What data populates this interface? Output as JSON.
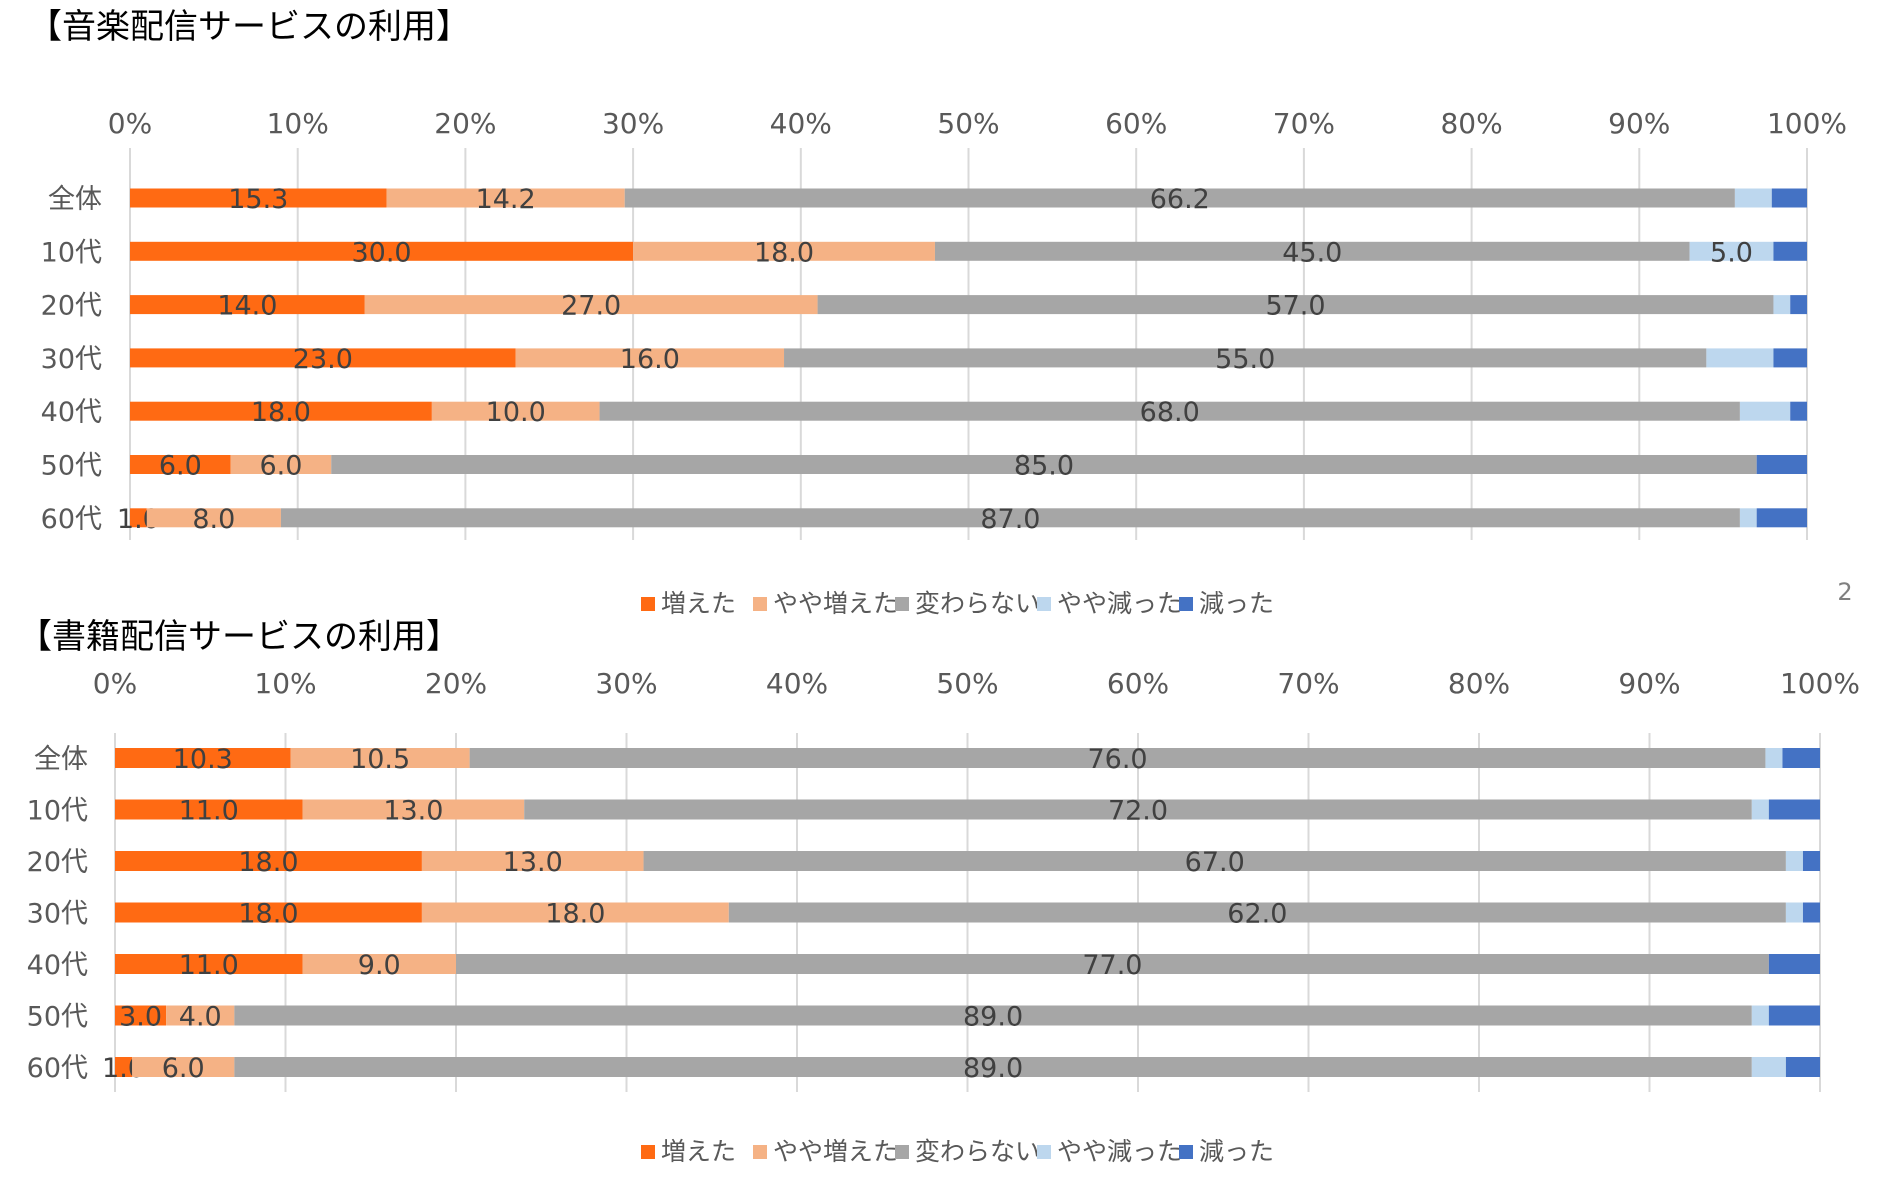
{
  "page": {
    "page_number": "2"
  },
  "legend_items": [
    {
      "key": "inc",
      "label": "増えた",
      "color": "#FF6A13"
    },
    {
      "key": "slinc",
      "label": "やや増えた",
      "color": "#F5B285"
    },
    {
      "key": "same",
      "label": "変わらない",
      "color": "#A6A6A6"
    },
    {
      "key": "sldec",
      "label": "やや減った",
      "color": "#BDD7EE"
    },
    {
      "key": "dec",
      "label": "減った",
      "color": "#4472C4"
    }
  ],
  "chart_data": [
    {
      "type": "bar",
      "orientation": "horizontal",
      "stacked": "100%",
      "title": "【音楽配信サービスの利用】",
      "xlim": [
        0,
        100
      ],
      "x_ticks": [
        "0%",
        "10%",
        "20%",
        "30%",
        "40%",
        "50%",
        "60%",
        "70%",
        "80%",
        "90%",
        "100%"
      ],
      "grid": true,
      "legend_position": "bottom",
      "categories": [
        "全体",
        "10代",
        "20代",
        "30代",
        "40代",
        "50代",
        "60代"
      ],
      "series": [
        {
          "name": "増えた",
          "values": [
            15.3,
            30.0,
            14.0,
            23.0,
            18.0,
            6.0,
            1.0
          ],
          "labels": [
            "15.3",
            "30.0",
            "14.0",
            "23.0",
            "18.0",
            "6.0",
            "1.0"
          ]
        },
        {
          "name": "やや増えた",
          "values": [
            14.2,
            18.0,
            27.0,
            16.0,
            10.0,
            6.0,
            8.0
          ],
          "labels": [
            "14.2",
            "18.0",
            "27.0",
            "16.0",
            "10.0",
            "6.0",
            "8.0"
          ]
        },
        {
          "name": "変わらない",
          "values": [
            66.2,
            45.0,
            57.0,
            55.0,
            68.0,
            85.0,
            87.0
          ],
          "labels": [
            "66.2",
            "45.0",
            "57.0",
            "55.0",
            "68.0",
            "85.0",
            "87.0"
          ]
        },
        {
          "name": "やや減った",
          "values": [
            2.2,
            5.0,
            1.0,
            4.0,
            3.0,
            0.0,
            1.0
          ],
          "labels": [
            "",
            "5.0",
            "",
            "",
            "",
            "",
            ""
          ]
        },
        {
          "name": "減った",
          "values": [
            2.1,
            2.0,
            1.0,
            2.0,
            1.0,
            3.0,
            3.0
          ],
          "labels": [
            "",
            "",
            "",
            "",
            "",
            "",
            ""
          ]
        }
      ]
    },
    {
      "type": "bar",
      "orientation": "horizontal",
      "stacked": "100%",
      "title": "【書籍配信サービスの利用】",
      "xlim": [
        0,
        100
      ],
      "x_ticks": [
        "0%",
        "10%",
        "20%",
        "30%",
        "40%",
        "50%",
        "60%",
        "70%",
        "80%",
        "90%",
        "100%"
      ],
      "grid": true,
      "legend_position": "bottom",
      "categories": [
        "全体",
        "10代",
        "20代",
        "30代",
        "40代",
        "50代",
        "60代"
      ],
      "series": [
        {
          "name": "増えた",
          "values": [
            10.3,
            11.0,
            18.0,
            18.0,
            11.0,
            3.0,
            1.0
          ],
          "labels": [
            "10.3",
            "11.0",
            "18.0",
            "18.0",
            "11.0",
            "3.0",
            "1.0"
          ]
        },
        {
          "name": "やや増えた",
          "values": [
            10.5,
            13.0,
            13.0,
            18.0,
            9.0,
            4.0,
            6.0
          ],
          "labels": [
            "10.5",
            "13.0",
            "13.0",
            "18.0",
            "9.0",
            "4.0",
            "6.0"
          ]
        },
        {
          "name": "変わらない",
          "values": [
            76.0,
            72.0,
            67.0,
            62.0,
            77.0,
            89.0,
            89.0
          ],
          "labels": [
            "76.0",
            "72.0",
            "67.0",
            "62.0",
            "77.0",
            "89.0",
            "89.0"
          ]
        },
        {
          "name": "やや減った",
          "values": [
            1.0,
            1.0,
            1.0,
            1.0,
            0.0,
            1.0,
            2.0
          ],
          "labels": [
            "",
            "",
            "",
            "",
            "",
            "",
            ""
          ]
        },
        {
          "name": "減った",
          "values": [
            2.2,
            3.0,
            1.0,
            1.0,
            3.0,
            3.0,
            2.0
          ],
          "labels": [
            "",
            "",
            "",
            "",
            "",
            "",
            ""
          ]
        }
      ]
    }
  ]
}
